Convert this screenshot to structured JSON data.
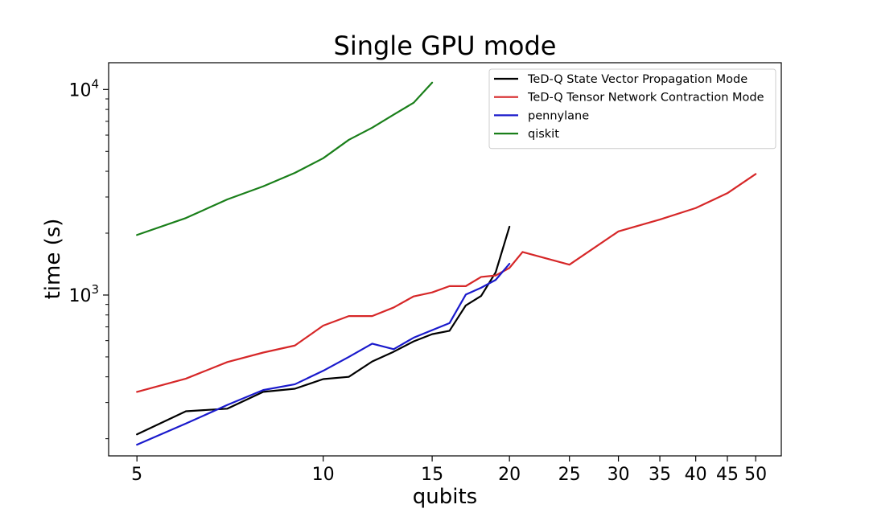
{
  "chart_data": {
    "type": "line",
    "title": "Single GPU mode",
    "xlabel": "qubits",
    "ylabel": "time (s)",
    "xscale": "log",
    "yscale": "log",
    "xlim": [
      4.5,
      55
    ],
    "ylim": [
      165,
      13500
    ],
    "xticks": [
      5,
      10,
      15,
      20,
      25,
      30,
      35,
      40,
      45,
      50
    ],
    "xtick_labels": [
      "5",
      "10",
      "15",
      "20",
      "25",
      "30",
      "35",
      "40",
      "45",
      "50"
    ],
    "yticks": [
      1000,
      10000
    ],
    "ytick_labels": [
      {
        "base": "10",
        "exp": "3"
      },
      {
        "base": "10",
        "exp": "4"
      }
    ],
    "grid": false,
    "legend_position": "top-right",
    "series": [
      {
        "name": "TeD-Q State Vector Propagation Mode",
        "color": "#000000",
        "x": [
          5,
          6,
          7,
          8,
          9,
          10,
          11,
          12,
          13,
          14,
          15,
          16,
          17,
          18,
          19,
          20
        ],
        "y": [
          210,
          272,
          280,
          338,
          350,
          390,
          400,
          475,
          530,
          595,
          645,
          670,
          890,
          990,
          1290,
          2150
        ]
      },
      {
        "name": "TeD-Q Tensor Network Contraction Mode",
        "color": "#d62728",
        "x": [
          5,
          6,
          7,
          8,
          9,
          10,
          11,
          12,
          13,
          14,
          15,
          16,
          17,
          18,
          19,
          20,
          21,
          25,
          30,
          35,
          40,
          45,
          50
        ],
        "y": [
          338,
          392,
          472,
          525,
          568,
          710,
          790,
          790,
          870,
          985,
          1030,
          1105,
          1105,
          1225,
          1245,
          1355,
          1620,
          1405,
          2040,
          2330,
          2650,
          3130,
          3880
        ]
      },
      {
        "name": "pennylane",
        "color": "#1a1acc",
        "x": [
          5,
          6,
          7,
          8,
          9,
          10,
          11,
          12,
          13,
          14,
          15,
          16,
          17,
          18,
          19,
          20
        ],
        "y": [
          187,
          237,
          292,
          345,
          368,
          428,
          500,
          580,
          545,
          620,
          675,
          730,
          1005,
          1085,
          1185,
          1420
        ]
      },
      {
        "name": "qiskit",
        "color": "#1a7f1a",
        "x": [
          5,
          6,
          7,
          8,
          9,
          10,
          11,
          12,
          13,
          14,
          15
        ],
        "y": [
          1960,
          2370,
          2920,
          3380,
          3930,
          4630,
          5690,
          6520,
          7550,
          8620,
          10800
        ]
      }
    ]
  }
}
